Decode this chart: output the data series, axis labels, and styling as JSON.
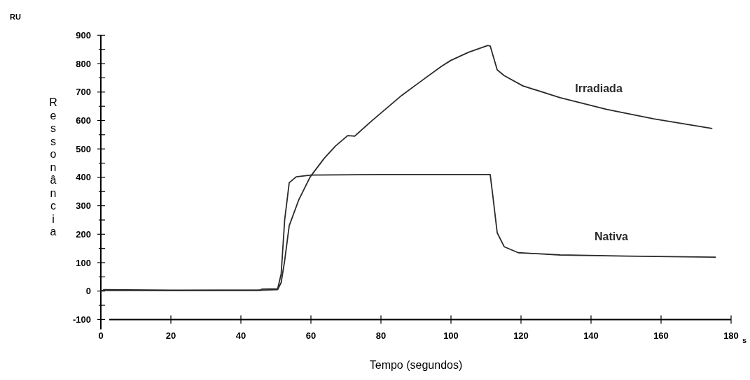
{
  "chart_data": {
    "type": "line",
    "xlabel": "Tempo (segundos)",
    "ylabel": "Ressonância",
    "annotations": [
      "RU",
      "s"
    ],
    "xlim": [
      0,
      180
    ],
    "ylim": [
      -100,
      900
    ],
    "xticks": [
      0,
      20,
      40,
      60,
      80,
      100,
      120,
      140,
      160,
      180
    ],
    "yticks": [
      -100,
      {
        "value": -50,
        "label": null
      },
      0,
      {
        "value": 50,
        "label": null
      },
      100,
      {
        "value": 150,
        "label": null
      },
      200,
      {
        "value": 250,
        "label": null
      },
      300,
      {
        "value": 350,
        "label": null
      },
      400,
      {
        "value": 450,
        "label": null
      },
      500,
      {
        "value": 550,
        "label": null
      },
      600,
      {
        "value": 650,
        "label": null
      },
      700,
      {
        "value": 750,
        "label": null
      },
      800,
      {
        "value": 850,
        "label": null
      },
      900
    ],
    "grid": false,
    "legend": false,
    "marker": "none",
    "line_style": "solid",
    "series": [
      {
        "name": "Irradiada",
        "color": "#2a2a2a",
        "x": [
          0,
          20,
          45,
          50.5,
          51.5,
          52.5,
          53.8,
          56.5,
          59.8,
          63.8,
          67,
          70.5,
          72.5,
          77.3,
          85.9,
          91.2,
          97.2,
          99.9,
          105,
          110.5,
          111.2,
          113.2,
          115.2,
          120.5,
          131.2,
          144.5,
          157.9,
          174.5
        ],
        "values": [
          2,
          2,
          3,
          5,
          30,
          107,
          230,
          320,
          402,
          467,
          510,
          547,
          545,
          598,
          688,
          736,
          790,
          811,
          840,
          864,
          862,
          778,
          758,
          722,
          680,
          639,
          606,
          572
        ]
      },
      {
        "name": "Nativa",
        "color": "#2a2a2a",
        "x": [
          0.8,
          20,
          45.6,
          46,
          50.5,
          51.5,
          52.5,
          53.8,
          55.8,
          60,
          80,
          100,
          111.2,
          112,
          113.2,
          115.2,
          119.2,
          131.2,
          150,
          175.5
        ],
        "values": [
          5,
          3,
          3,
          7,
          8,
          60,
          250,
          381,
          402,
          408,
          410,
          410,
          410,
          330,
          205,
          156,
          135,
          127,
          123,
          119
        ]
      }
    ]
  }
}
